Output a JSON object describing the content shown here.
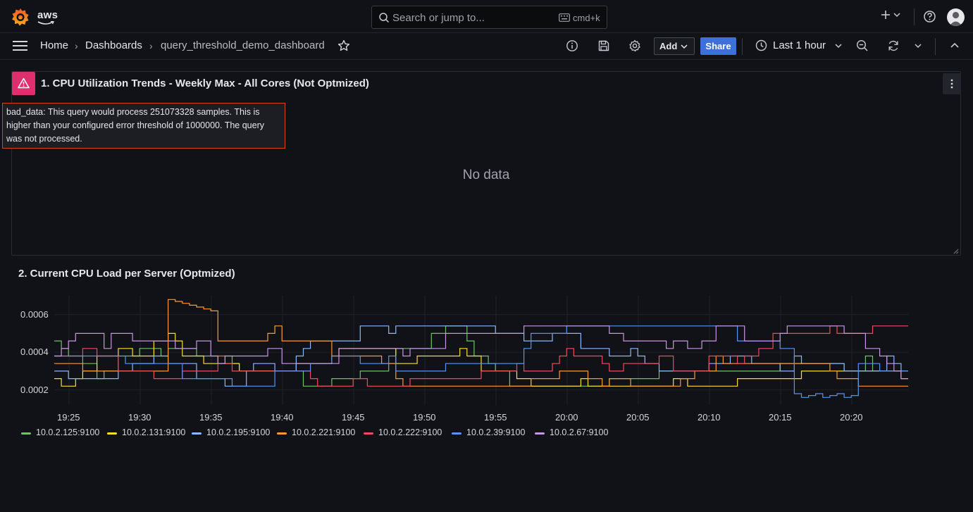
{
  "topbar": {
    "brand": "aws",
    "search_placeholder": "Search or jump to...",
    "shortcut": "cmd+k"
  },
  "breadcrumb": {
    "home": "Home",
    "dashboards": "Dashboards",
    "current": "query_threshold_demo_dashboard"
  },
  "toolbar": {
    "add_label": "Add",
    "share_label": "Share",
    "time_range": "Last 1 hour"
  },
  "panel1": {
    "title": "1. CPU Utilization Trends - Weekly Max - All Cores (Not Optmized)",
    "error": "bad_data: This query would process 251073328 samples. This is higher than your configured error threshold of 1000000. The query was not processed.",
    "no_data": "No data"
  },
  "panel2": {
    "title": "2. Current CPU Load per Server (Optmized)"
  },
  "colors": {
    "accent": "#3d71d9",
    "error_badge": "#e02f6d",
    "error_border": "#d9441e"
  },
  "chart_data": {
    "type": "line",
    "x_ticks": [
      "19:25",
      "19:30",
      "19:35",
      "19:40",
      "19:45",
      "19:50",
      "19:55",
      "20:00",
      "20:05",
      "20:10",
      "20:15",
      "20:20"
    ],
    "y_ticks": [
      "0.0002",
      "0.0004",
      "0.0006"
    ],
    "ylim": [
      0.00012,
      0.0007
    ],
    "x_range_minutes": [
      0,
      60
    ],
    "grid": true,
    "legend_position": "bottom-left",
    "series": [
      {
        "name": "10.0.2.125:9100",
        "color": "#73bf69"
      },
      {
        "name": "10.0.2.131:9100",
        "color": "#fade2a"
      },
      {
        "name": "10.0.2.195:9100",
        "color": "#8ab8ff"
      },
      {
        "name": "10.0.2.221:9100",
        "color": "#ff9830"
      },
      {
        "name": "10.0.2.222:9100",
        "color": "#f2495c"
      },
      {
        "name": "10.0.2.39:9100",
        "color": "#5794f2"
      },
      {
        "name": "10.0.2.67:9100",
        "color": "#ca95e5"
      }
    ]
  }
}
